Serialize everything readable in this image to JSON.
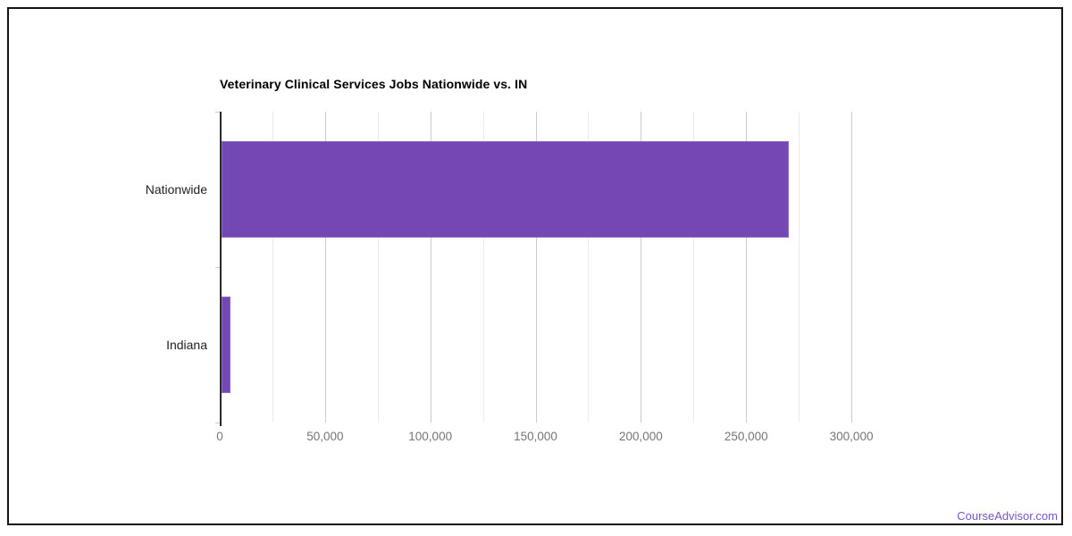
{
  "chart_data": {
    "type": "bar",
    "orientation": "horizontal",
    "title": "Veterinary Clinical Services Jobs Nationwide vs. IN",
    "categories": [
      "Nationwide",
      "Indiana"
    ],
    "values": [
      270000,
      4800
    ],
    "xlabel": "",
    "ylabel": "",
    "xlim": [
      0,
      325000
    ],
    "x_ticks": [
      {
        "value": 0,
        "label": "0"
      },
      {
        "value": 50000,
        "label": "50,000"
      },
      {
        "value": 100000,
        "label": "100,000"
      },
      {
        "value": 150000,
        "label": "150,000"
      },
      {
        "value": 200000,
        "label": "200,000"
      },
      {
        "value": 250000,
        "label": "250,000"
      },
      {
        "value": 300000,
        "label": "300,000"
      }
    ],
    "minor_grid_step": 25000,
    "grid": true,
    "legend": "none",
    "bar_color": "#7347b4",
    "bar_border_color": "#8d6cc6"
  },
  "footer": {
    "link_text": "CourseAdvisor.com",
    "link_color": "#7a52cc"
  }
}
